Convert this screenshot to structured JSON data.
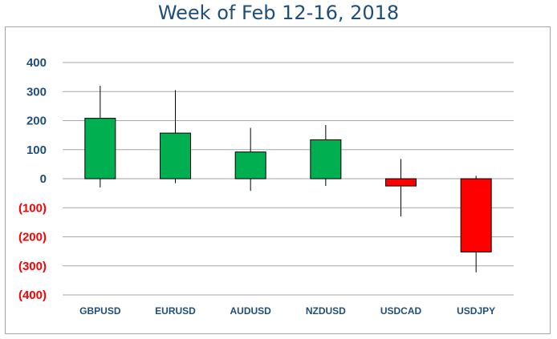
{
  "chart_data": {
    "type": "candlestick",
    "title": "Week of Feb 12-16, 2018",
    "xlabel": "",
    "ylabel": "",
    "ylim": [
      -400,
      400
    ],
    "y_ticks": [
      400,
      300,
      200,
      100,
      0,
      -100,
      -200,
      -300,
      -400
    ],
    "y_tick_labels": [
      "400",
      "300",
      "200",
      "100",
      "0",
      "(100)",
      "(200)",
      "(300)",
      "(400)"
    ],
    "grid": true,
    "legend": "none",
    "categories": [
      "GBPUSD",
      "EURUSD",
      "AUDUSD",
      "NZDUSD",
      "USDCAD",
      "USDJPY"
    ],
    "candles": [
      {
        "label": "GBPUSD",
        "open": 0,
        "close": 208,
        "high": 320,
        "low": -30
      },
      {
        "label": "EURUSD",
        "open": 0,
        "close": 157,
        "high": 305,
        "low": -15
      },
      {
        "label": "AUDUSD",
        "open": 0,
        "close": 92,
        "high": 175,
        "low": -42
      },
      {
        "label": "NZDUSD",
        "open": 0,
        "close": 134,
        "high": 185,
        "low": -25
      },
      {
        "label": "USDCAD",
        "open": 0,
        "close": -25,
        "high": 68,
        "low": -130
      },
      {
        "label": "USDJPY",
        "open": 0,
        "close": -252,
        "high": 10,
        "low": -322
      }
    ]
  },
  "colors": {
    "up": "#00b050",
    "down": "#ff0000",
    "positive_tick": "#1f4e79",
    "negative_tick": "#ff0000",
    "title": "#1f4e79",
    "grid": "#a6a6a6",
    "category_label": "#1f4e79"
  }
}
